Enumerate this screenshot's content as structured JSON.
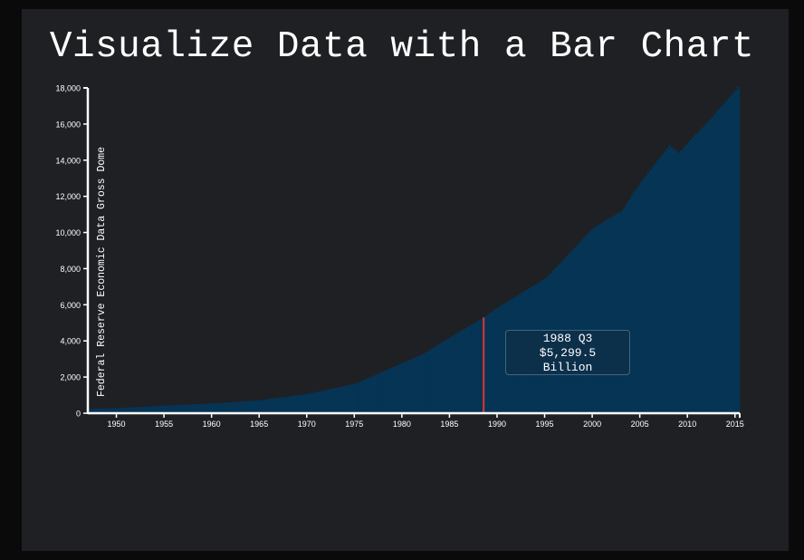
{
  "title": "Visualize Data with a Bar Chart",
  "colors": {
    "bar": "#063454",
    "highlight": "#e03434",
    "axis": "#ffffff",
    "tick_text": "#ffffff",
    "card": "#1f2023"
  },
  "tooltip": {
    "date": "1988 Q3",
    "value": "$5,299.5",
    "unit": "Billion"
  },
  "chart_data": {
    "type": "bar",
    "title": "Visualize Data with a Bar Chart",
    "ylabel": "Federal Reserve Economic Data Gross Dome",
    "xlabel": "",
    "xlim": [
      1947.0,
      2015.5
    ],
    "ylim": [
      0,
      18000
    ],
    "xticks": [
      "1950",
      "1955",
      "1960",
      "1965",
      "1970",
      "1975",
      "1980",
      "1985",
      "1990",
      "1995",
      "2000",
      "2005",
      "2010",
      "2015"
    ],
    "yticks": [
      "0",
      "2,000",
      "4,000",
      "6,000",
      "8,000",
      "10,000",
      "12,000",
      "14,000",
      "16,000",
      "18,000"
    ],
    "highlighted": {
      "x": 1988.5,
      "label": "1988 Q3",
      "value": 5299.5
    },
    "series": [
      {
        "x": [
          1947,
          1950,
          1955,
          1960,
          1965,
          1970,
          1975,
          1980,
          1982,
          1985,
          1988.5,
          1990,
          1995,
          2000,
          2003,
          2005,
          2008,
          2009,
          2010,
          2012,
          2015.25
        ],
        "values": [
          243,
          280,
          420,
          540,
          720,
          1070,
          1630,
          2790,
          3250,
          4220,
          5299.5,
          5870,
          7470,
          10250,
          11200,
          12800,
          14830,
          14400,
          15000,
          16100,
          18060
        ]
      }
    ]
  }
}
